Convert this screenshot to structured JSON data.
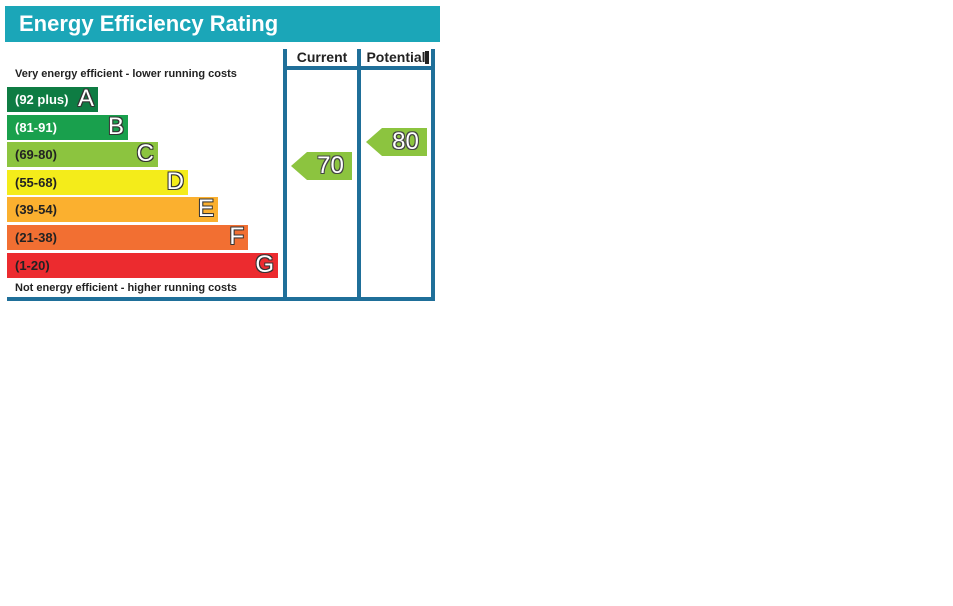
{
  "chart_data": {
    "type": "bar",
    "title": "Energy Efficiency Rating",
    "top_caption": "Very energy efficient - lower running costs",
    "bottom_caption": "Not energy efficient - higher running costs",
    "bands": [
      {
        "range": "(92 plus)",
        "letter": "A",
        "color": "#0e7c43"
      },
      {
        "range": "(81-91)",
        "letter": "B",
        "color": "#19a04d"
      },
      {
        "range": "(69-80)",
        "letter": "C",
        "color": "#8cc43f"
      },
      {
        "range": "(55-68)",
        "letter": "D",
        "color": "#f4ec1a"
      },
      {
        "range": "(39-54)",
        "letter": "E",
        "color": "#fbb02f"
      },
      {
        "range": "(21-38)",
        "letter": "F",
        "color": "#f26f32"
      },
      {
        "range": "(1-20)",
        "letter": "G",
        "color": "#ec2b2f"
      }
    ],
    "columns": [
      "Current",
      "Potential"
    ],
    "current": {
      "value": 70,
      "band": "C",
      "color": "#8cc43f"
    },
    "potential": {
      "value": 80,
      "band": "C",
      "color": "#8cc43f"
    }
  },
  "colors": {
    "title_bar": "#1ba6b8",
    "frame": "#1f6f99"
  }
}
